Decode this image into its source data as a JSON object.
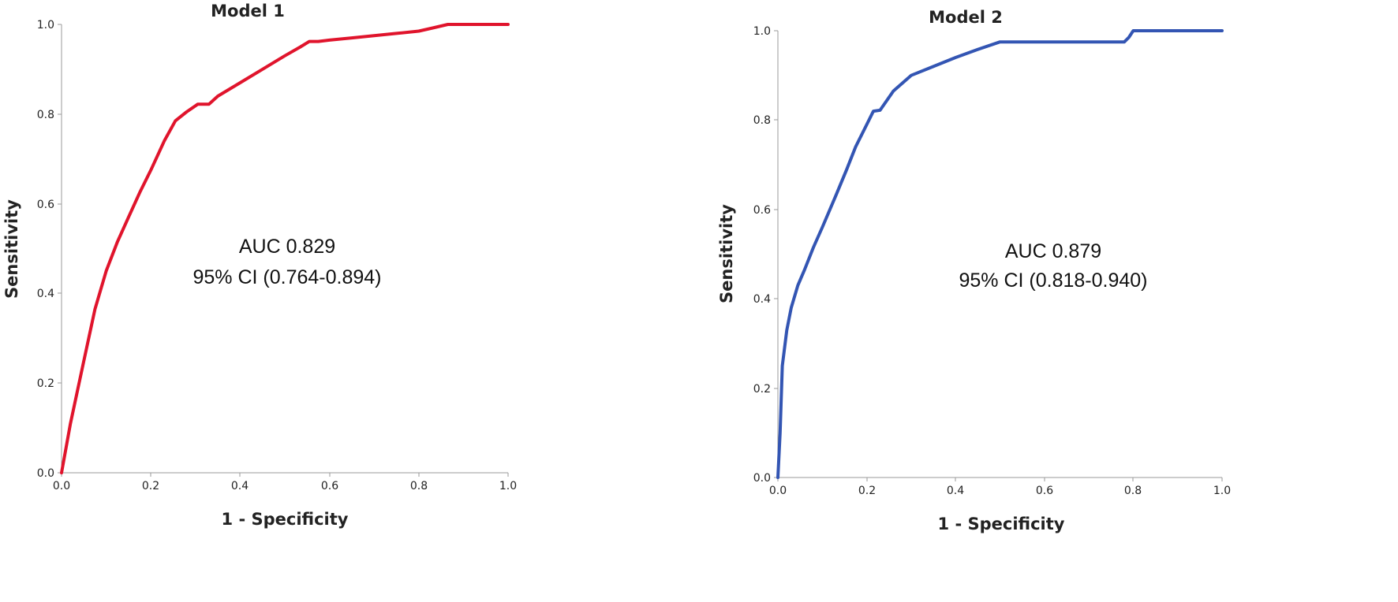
{
  "chart_data": [
    {
      "type": "line",
      "title": "Model 1",
      "xlabel": "1 - Specificity",
      "ylabel": "Sensitivity",
      "xlim": [
        0,
        1
      ],
      "ylim": [
        0,
        1
      ],
      "xticks": [
        "0.0",
        "0.2",
        "0.4",
        "0.6",
        "0.8",
        "1.0"
      ],
      "yticks": [
        "0.0",
        "0.2",
        "0.4",
        "0.6",
        "0.8",
        "1.0"
      ],
      "grid": false,
      "color": "#e0142c",
      "annotation": [
        "AUC 0.829",
        "95% CI (0.764-0.894)"
      ],
      "series": [
        {
          "x": [
            0.0,
            0.02,
            0.05,
            0.075,
            0.1,
            0.125,
            0.15,
            0.175,
            0.2,
            0.23,
            0.255,
            0.28,
            0.305,
            0.33,
            0.35,
            0.4,
            0.45,
            0.5,
            0.535,
            0.555,
            0.575,
            0.6,
            0.65,
            0.7,
            0.75,
            0.8,
            0.835,
            0.865,
            0.9,
            0.95,
            1.0
          ],
          "y": [
            0.0,
            0.11,
            0.25,
            0.365,
            0.45,
            0.515,
            0.57,
            0.625,
            0.675,
            0.74,
            0.785,
            0.805,
            0.822,
            0.822,
            0.84,
            0.87,
            0.9,
            0.93,
            0.95,
            0.962,
            0.962,
            0.965,
            0.97,
            0.975,
            0.98,
            0.985,
            0.993,
            1.0,
            1.0,
            1.0,
            1.0
          ]
        }
      ]
    },
    {
      "type": "line",
      "title": "Model 2",
      "xlabel": "1 - Specificity",
      "ylabel": "Sensitivity",
      "xlim": [
        0,
        1
      ],
      "ylim": [
        0,
        1
      ],
      "xticks": [
        "0.0",
        "0.2",
        "0.4",
        "0.6",
        "0.8",
        "1.0"
      ],
      "yticks": [
        "0.0",
        "0.2",
        "0.4",
        "0.6",
        "0.8",
        "1.0"
      ],
      "grid": false,
      "color": "#3355b3",
      "annotation": [
        "AUC 0.879",
        "95% CI (0.818-0.940)"
      ],
      "series": [
        {
          "x": [
            0.0,
            0.005,
            0.01,
            0.02,
            0.03,
            0.045,
            0.06,
            0.08,
            0.1,
            0.13,
            0.155,
            0.175,
            0.2,
            0.215,
            0.23,
            0.26,
            0.3,
            0.35,
            0.4,
            0.45,
            0.5,
            0.6,
            0.7,
            0.78,
            0.79,
            0.8,
            0.85,
            0.9,
            1.0
          ],
          "y": [
            0.0,
            0.1,
            0.25,
            0.33,
            0.38,
            0.43,
            0.465,
            0.515,
            0.56,
            0.63,
            0.69,
            0.74,
            0.79,
            0.82,
            0.822,
            0.865,
            0.9,
            0.92,
            0.94,
            0.958,
            0.975,
            0.975,
            0.975,
            0.975,
            0.985,
            1.0,
            1.0,
            1.0,
            1.0
          ]
        }
      ]
    }
  ]
}
